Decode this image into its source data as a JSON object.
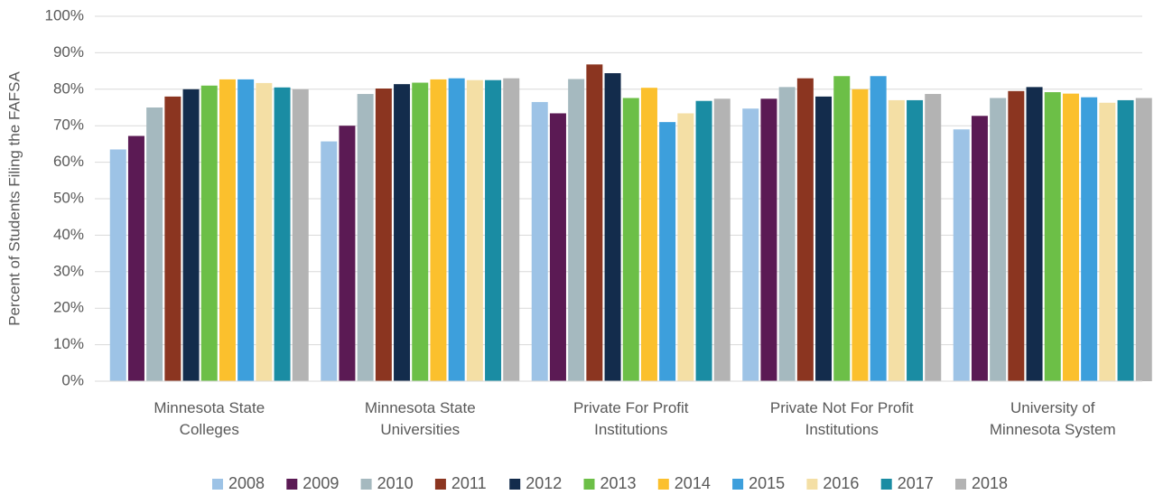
{
  "chart_data": {
    "type": "bar",
    "y_label": "Percent of Students Filing the FAFSA",
    "categories": [
      "Minnesota State Colleges",
      "Minnesota State Universities",
      "Private For Profit Institutions",
      "Private Not For Profit Institutions",
      "University of Minnesota System"
    ],
    "series": [
      {
        "name": "2008",
        "color": "#9dc3e6",
        "values": [
          63.5,
          65.7,
          76.5,
          74.7,
          69
        ]
      },
      {
        "name": "2009",
        "color": "#5b1a54",
        "values": [
          67.2,
          70,
          73.4,
          77.4,
          72.7
        ]
      },
      {
        "name": "2010",
        "color": "#a5b9bf",
        "values": [
          75,
          78.7,
          82.8,
          80.6,
          77.6
        ]
      },
      {
        "name": "2011",
        "color": "#8b3520",
        "values": [
          78,
          80.2,
          86.8,
          83,
          79.5
        ]
      },
      {
        "name": "2012",
        "color": "#132c4c",
        "values": [
          80,
          81.4,
          84.4,
          78,
          80.6
        ]
      },
      {
        "name": "2013",
        "color": "#6cbf47",
        "values": [
          81,
          81.8,
          77.6,
          83.6,
          79.2
        ]
      },
      {
        "name": "2014",
        "color": "#fbc02d",
        "values": [
          82.7,
          82.7,
          80.4,
          80,
          78.8
        ]
      },
      {
        "name": "2015",
        "color": "#3d9fdc",
        "values": [
          82.7,
          83,
          71,
          83.6,
          77.8
        ]
      },
      {
        "name": "2016",
        "color": "#f4dfa5",
        "values": [
          81.7,
          82.5,
          73.4,
          77,
          76.3
        ]
      },
      {
        "name": "2017",
        "color": "#1a8ca3",
        "values": [
          80.5,
          82.5,
          76.8,
          77,
          77
        ]
      },
      {
        "name": "2018",
        "color": "#b3b3b3",
        "values": [
          80,
          83,
          77.4,
          78.7,
          77.6
        ]
      }
    ],
    "ylim": [
      0,
      100
    ],
    "yticks": [
      {
        "value": 0,
        "label": "0%"
      },
      {
        "value": 10,
        "label": "10%"
      },
      {
        "value": 20,
        "label": "20%"
      },
      {
        "value": 30,
        "label": "30%"
      },
      {
        "value": 40,
        "label": "40%"
      },
      {
        "value": 50,
        "label": "50%"
      },
      {
        "value": 60,
        "label": "60%"
      },
      {
        "value": 70,
        "label": "70%"
      },
      {
        "value": 80,
        "label": "80%"
      },
      {
        "value": 90,
        "label": "90%"
      },
      {
        "value": 100,
        "label": "100%"
      }
    ],
    "grid": true,
    "legend": "bottom"
  }
}
